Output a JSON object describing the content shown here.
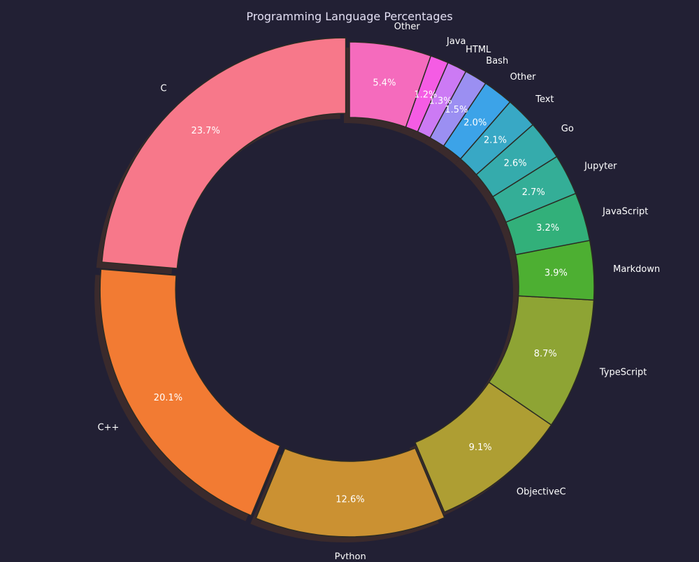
{
  "colors": {
    "background": "#222034",
    "hole": "#222034",
    "edge": "#2b2b24",
    "title_text": "#e4e0f4",
    "label_text": "#ffffff",
    "shadow": "#3a2a2c"
  },
  "chart_data": {
    "type": "pie",
    "variant": "donut",
    "title": "Programming Language Percentages",
    "start_angle_deg": 90,
    "direction": "counterclockwise",
    "exploded": [
      "C",
      "C++",
      "Python"
    ],
    "shadow": true,
    "slices": [
      {
        "label": "C",
        "value": 23.7,
        "pct_label": "23.7%",
        "color": "#f7788a"
      },
      {
        "label": "C++",
        "value": 20.1,
        "pct_label": "20.1%",
        "color": "#f27b33"
      },
      {
        "label": "Python",
        "value": 12.6,
        "pct_label": "12.6%",
        "color": "#cb9132"
      },
      {
        "label": "ObjectiveC",
        "value": 9.1,
        "pct_label": "9.1%",
        "color": "#ae9e33"
      },
      {
        "label": "TypeScript",
        "value": 8.7,
        "pct_label": "8.7%",
        "color": "#8ea434"
      },
      {
        "label": "Markdown",
        "value": 3.9,
        "pct_label": "3.9%",
        "color": "#4daf32"
      },
      {
        "label": "JavaScript",
        "value": 3.2,
        "pct_label": "3.2%",
        "color": "#32b07a"
      },
      {
        "label": "Jupyter",
        "value": 2.7,
        "pct_label": "2.7%",
        "color": "#34ae97"
      },
      {
        "label": "Go",
        "value": 2.6,
        "pct_label": "2.6%",
        "color": "#35abac"
      },
      {
        "label": "Text",
        "value": 2.1,
        "pct_label": "2.1%",
        "color": "#38a8c5"
      },
      {
        "label": "Other",
        "value": 2.0,
        "pct_label": "2.0%",
        "color": "#3ca3e8"
      },
      {
        "label": "Bash",
        "value": 1.5,
        "pct_label": "1.5%",
        "color": "#9b8ff2"
      },
      {
        "label": "HTML",
        "value": 1.3,
        "pct_label": "1.3%",
        "color": "#cc7af4"
      },
      {
        "label": "Java",
        "value": 1.2,
        "pct_label": "1.2%",
        "color": "#f55ce4"
      },
      {
        "label": "Other",
        "value": 5.4,
        "pct_label": "5.4%",
        "color": "#f56bbd"
      }
    ]
  }
}
